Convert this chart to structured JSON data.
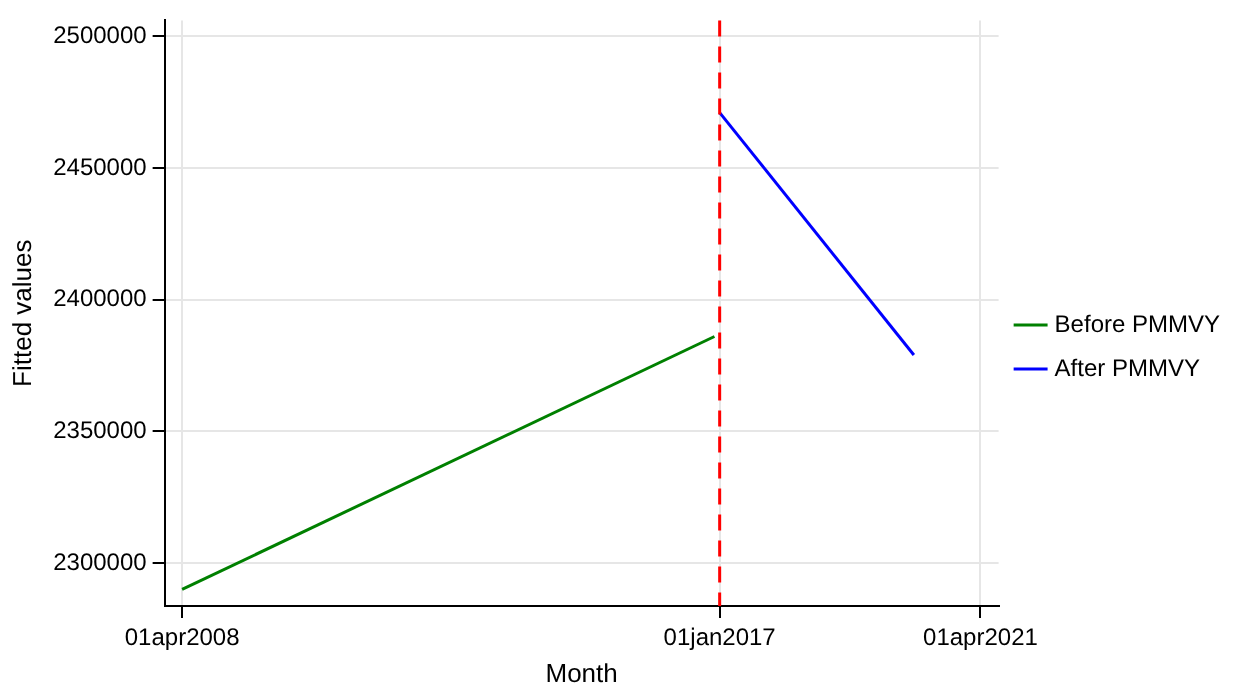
{
  "chart_data": {
    "type": "line",
    "xlabel": "Month",
    "ylabel": "Fitted values",
    "xlim": [
      "2007-12-19",
      "2021-07-18"
    ],
    "ylim": [
      2283700,
      2506000
    ],
    "xticks": [
      {
        "value": "2008-04-01",
        "label": "01apr2008"
      },
      {
        "value": "2017-01-01",
        "label": "01jan2017"
      },
      {
        "value": "2021-04-01",
        "label": "01apr2021"
      }
    ],
    "yticks": [
      2300000,
      2350000,
      2400000,
      2450000,
      2500000
    ],
    "series": [
      {
        "name": "Before PMMVY",
        "color": "#008000",
        "x": [
          "2008-04",
          "2016-12"
        ],
        "values": [
          2290000,
          2386000
        ]
      },
      {
        "name": "After PMMVY",
        "color": "#0000ff",
        "x": [
          "2017-01",
          "2020-03"
        ],
        "values": [
          2471000,
          2379000
        ]
      }
    ],
    "ref_lines": [
      {
        "axis": "x",
        "value": "2017-01-01",
        "color": "#ff0000",
        "line_style": "dashed"
      }
    ],
    "grid": true,
    "legend": "right",
    "line_style": "solid",
    "marker": "none"
  }
}
